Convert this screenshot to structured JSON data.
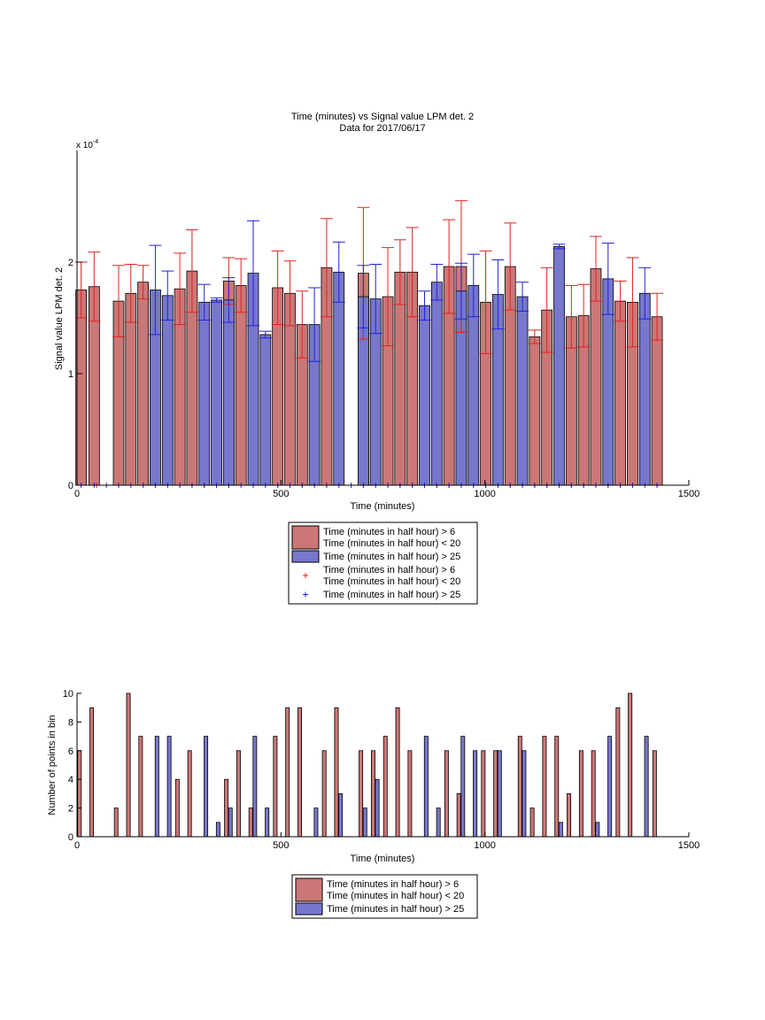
{
  "chart_data": [
    {
      "type": "bar",
      "title": "Time (minutes) vs Signal value LPM det. 2",
      "subtitle": "Data for 2017/06/17",
      "xlabel": "Time (minutes)",
      "ylabel": "Signal value LPM det. 2",
      "exponent_label": "x 10",
      "exponent_power": "-4",
      "scale_factor": 0.0001,
      "xlim": [
        0,
        1500
      ],
      "ylim": [
        0,
        3
      ],
      "xticks": [
        0,
        500,
        1000,
        1500
      ],
      "xtick_labels": [
        "0",
        "500",
        "1000",
        "1500"
      ],
      "yticks": [
        0,
        1,
        2
      ],
      "ytick_labels": [
        "0",
        "1",
        "2"
      ],
      "bar_width": 26,
      "colors": {
        "red_bar": "#cc7777",
        "blue_bar": "#7777cc",
        "red_err": "#dd2222",
        "blue_err": "#2222dd"
      },
      "series": [
        {
          "name": "Time (minutes in half hour) > 6\nTime (minutes in half hour) < 20",
          "color": "red",
          "points": [
            {
              "x": 10,
              "y": 1.75,
              "err": 0.25
            },
            {
              "x": 42,
              "y": 1.78,
              "err": 0.31
            },
            {
              "x": 102,
              "y": 1.65,
              "err": 0.32
            },
            {
              "x": 132,
              "y": 1.72,
              "err": 0.26
            },
            {
              "x": 162,
              "y": 1.82,
              "err": 0.15
            },
            {
              "x": 252,
              "y": 1.76,
              "err": 0.32
            },
            {
              "x": 282,
              "y": 1.92,
              "err": 0.37
            },
            {
              "x": 372,
              "y": 1.83,
              "err": 0.21
            },
            {
              "x": 402,
              "y": 1.79,
              "err": 0.24
            },
            {
              "x": 492,
              "y": 1.77,
              "err": 0.33
            },
            {
              "x": 522,
              "y": 1.72,
              "err": 0.29
            },
            {
              "x": 552,
              "y": 1.44,
              "err": 0.3
            },
            {
              "x": 612,
              "y": 1.95,
              "err": 0.44
            },
            {
              "x": 702,
              "y": 1.9,
              "err": 0.59
            },
            {
              "x": 762,
              "y": 1.69,
              "err": 0.44
            },
            {
              "x": 792,
              "y": 1.91,
              "err": 0.29
            },
            {
              "x": 822,
              "y": 1.91,
              "err": 0.4
            },
            {
              "x": 912,
              "y": 1.96,
              "err": 0.42
            },
            {
              "x": 942,
              "y": 1.96,
              "err": 0.59
            },
            {
              "x": 1002,
              "y": 1.64,
              "err": 0.46
            },
            {
              "x": 1062,
              "y": 1.96,
              "err": 0.39
            },
            {
              "x": 1122,
              "y": 1.33,
              "err": 0.06
            },
            {
              "x": 1152,
              "y": 1.57,
              "err": 0.38
            },
            {
              "x": 1212,
              "y": 1.51,
              "err": 0.28
            },
            {
              "x": 1242,
              "y": 1.52,
              "err": 0.28
            },
            {
              "x": 1272,
              "y": 1.94,
              "err": 0.29
            },
            {
              "x": 1332,
              "y": 1.65,
              "err": 0.18
            },
            {
              "x": 1362,
              "y": 1.64,
              "err": 0.4
            },
            {
              "x": 1422,
              "y": 1.51,
              "err": 0.21
            }
          ]
        },
        {
          "name": "Time (minutes in half hour) > 25",
          "color": "blue",
          "points": [
            {
              "x": 192,
              "y": 1.75,
              "err": 0.4
            },
            {
              "x": 222,
              "y": 1.7,
              "err": 0.22
            },
            {
              "x": 312,
              "y": 1.64,
              "err": 0.16
            },
            {
              "x": 342,
              "y": 1.66,
              "err": 0.02
            },
            {
              "x": 372,
              "y": 1.66,
              "err": 0.2
            },
            {
              "x": 432,
              "y": 1.9,
              "err": 0.47
            },
            {
              "x": 462,
              "y": 1.35,
              "err": 0.03
            },
            {
              "x": 582,
              "y": 1.44,
              "err": 0.33
            },
            {
              "x": 642,
              "y": 1.91,
              "err": 0.27
            },
            {
              "x": 702,
              "y": 1.69,
              "err": 0.28
            },
            {
              "x": 732,
              "y": 1.67,
              "err": 0.31
            },
            {
              "x": 852,
              "y": 1.61,
              "err": 0.13
            },
            {
              "x": 882,
              "y": 1.82,
              "err": 0.16
            },
            {
              "x": 942,
              "y": 1.74,
              "err": 0.25
            },
            {
              "x": 972,
              "y": 1.79,
              "err": 0.28
            },
            {
              "x": 1032,
              "y": 1.71,
              "err": 0.31
            },
            {
              "x": 1092,
              "y": 1.69,
              "err": 0.13
            },
            {
              "x": 1182,
              "y": 2.14,
              "err": 0.02
            },
            {
              "x": 1302,
              "y": 1.85,
              "err": 0.32
            },
            {
              "x": 1392,
              "y": 1.72,
              "err": 0.23
            }
          ]
        }
      ],
      "point_markers": {
        "red": [
          48,
          102,
          192,
          252,
          282,
          312,
          342,
          372,
          432,
          492,
          522,
          552,
          612,
          702,
          762,
          792,
          822,
          852,
          882,
          912,
          942,
          1002,
          1062,
          1122,
          1152,
          1212,
          1242,
          1272,
          1302,
          1332,
          1362,
          1422
        ],
        "blue": [
          10,
          42,
          72,
          102,
          132,
          162,
          192,
          222,
          252,
          282,
          312,
          342,
          372,
          402,
          432,
          462,
          492,
          522,
          552,
          582,
          612,
          642,
          672,
          702,
          732,
          762,
          792,
          822,
          852,
          882,
          912,
          942,
          972,
          1002,
          1032,
          1062,
          1092,
          1122,
          1152,
          1182,
          1212,
          1242,
          1272,
          1302,
          1332,
          1362,
          1392,
          1422
        ]
      },
      "legend": {
        "entries": [
          {
            "kind": "patch",
            "color": "red",
            "lines": [
              "Time (minutes in half hour) > 6",
              "Time (minutes in half hour) < 20"
            ]
          },
          {
            "kind": "patch",
            "color": "blue",
            "lines": [
              "Time (minutes in half hour) > 25"
            ]
          },
          {
            "kind": "marker",
            "color": "red",
            "lines": [
              "Time (minutes in half hour) > 6",
              "Time (minutes in half hour) < 20"
            ]
          },
          {
            "kind": "marker",
            "color": "blue",
            "lines": [
              "Time (minutes in half hour) > 25"
            ]
          }
        ],
        "placement": "below"
      }
    },
    {
      "type": "bar",
      "xlabel": "Time (minutes)",
      "ylabel": "Number of points in bin",
      "xlim": [
        0,
        1500
      ],
      "ylim": [
        0,
        10
      ],
      "xticks": [
        0,
        500,
        1000,
        1500
      ],
      "xtick_labels": [
        "0",
        "500",
        "1000",
        "1500"
      ],
      "yticks": [
        0,
        2,
        4,
        6,
        8,
        10
      ],
      "ytick_labels": [
        "0",
        "2",
        "4",
        "6",
        "8",
        "10"
      ],
      "bar_width": 9,
      "series": [
        {
          "name": "Time (minutes in half hour) > 6\nTime (minutes in half hour) < 20",
          "color": "red",
          "points": [
            {
              "x": 6,
              "y": 6
            },
            {
              "x": 36,
              "y": 9
            },
            {
              "x": 96,
              "y": 2
            },
            {
              "x": 126,
              "y": 10
            },
            {
              "x": 156,
              "y": 7
            },
            {
              "x": 246,
              "y": 4
            },
            {
              "x": 276,
              "y": 6
            },
            {
              "x": 366,
              "y": 4
            },
            {
              "x": 396,
              "y": 6
            },
            {
              "x": 426,
              "y": 2
            },
            {
              "x": 486,
              "y": 7
            },
            {
              "x": 516,
              "y": 9
            },
            {
              "x": 546,
              "y": 9
            },
            {
              "x": 606,
              "y": 6
            },
            {
              "x": 636,
              "y": 9
            },
            {
              "x": 696,
              "y": 6
            },
            {
              "x": 726,
              "y": 6
            },
            {
              "x": 756,
              "y": 7
            },
            {
              "x": 786,
              "y": 9
            },
            {
              "x": 816,
              "y": 6
            },
            {
              "x": 906,
              "y": 6
            },
            {
              "x": 936,
              "y": 3
            },
            {
              "x": 996,
              "y": 6
            },
            {
              "x": 1026,
              "y": 6
            },
            {
              "x": 1086,
              "y": 7
            },
            {
              "x": 1116,
              "y": 2
            },
            {
              "x": 1146,
              "y": 7
            },
            {
              "x": 1176,
              "y": 7
            },
            {
              "x": 1206,
              "y": 3
            },
            {
              "x": 1236,
              "y": 6
            },
            {
              "x": 1266,
              "y": 6
            },
            {
              "x": 1326,
              "y": 9
            },
            {
              "x": 1356,
              "y": 10
            },
            {
              "x": 1416,
              "y": 6
            }
          ]
        },
        {
          "name": "Time (minutes in half hour) > 25",
          "color": "blue",
          "points": [
            {
              "x": 196,
              "y": 7
            },
            {
              "x": 226,
              "y": 7
            },
            {
              "x": 316,
              "y": 7
            },
            {
              "x": 346,
              "y": 1
            },
            {
              "x": 376,
              "y": 2
            },
            {
              "x": 436,
              "y": 7
            },
            {
              "x": 466,
              "y": 2
            },
            {
              "x": 586,
              "y": 2
            },
            {
              "x": 646,
              "y": 3
            },
            {
              "x": 706,
              "y": 2
            },
            {
              "x": 736,
              "y": 4
            },
            {
              "x": 856,
              "y": 7
            },
            {
              "x": 886,
              "y": 2
            },
            {
              "x": 946,
              "y": 7
            },
            {
              "x": 976,
              "y": 6
            },
            {
              "x": 1036,
              "y": 6
            },
            {
              "x": 1096,
              "y": 6
            },
            {
              "x": 1186,
              "y": 1
            },
            {
              "x": 1276,
              "y": 1
            },
            {
              "x": 1306,
              "y": 7
            },
            {
              "x": 1396,
              "y": 7
            }
          ]
        }
      ],
      "legend": {
        "entries": [
          {
            "kind": "patch",
            "color": "red",
            "lines": [
              "Time (minutes in half hour) > 6",
              "Time (minutes in half hour) < 20"
            ]
          },
          {
            "kind": "patch",
            "color": "blue",
            "lines": [
              "Time (minutes in half hour) > 25"
            ]
          }
        ],
        "placement": "below"
      }
    }
  ]
}
